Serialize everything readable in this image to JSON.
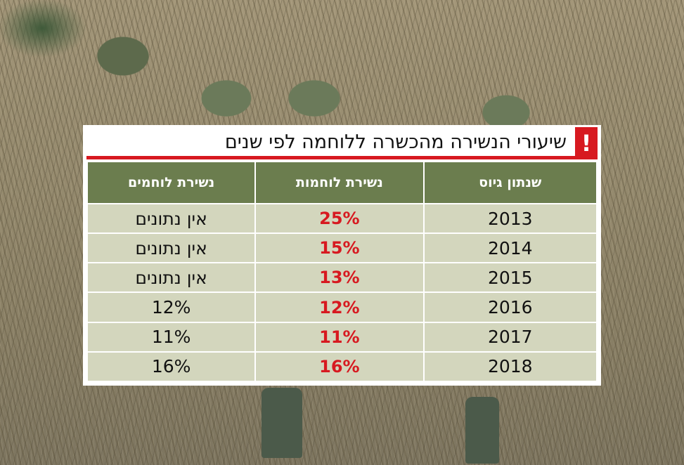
{
  "chart_data": {
    "type": "table",
    "title": "שיעורי הנשירה מהכשרה ללוחמה לפי שנים",
    "columns": [
      "שנתון גיוס",
      "נשירת לוחמות",
      "נשירת לוחמים"
    ],
    "rows": [
      [
        "2013",
        "25%",
        "אין נתונים"
      ],
      [
        "2014",
        "15%",
        "אין נתונים"
      ],
      [
        "2015",
        "13%",
        "אין נתונים"
      ],
      [
        "2016",
        "12%",
        "12%"
      ],
      [
        "2017",
        "11%",
        "11%"
      ],
      [
        "2018",
        "16%",
        "16%"
      ]
    ],
    "colors": {
      "accent": "#d71920",
      "header": "#6b7d4e",
      "cell": "#d3d6bd"
    }
  },
  "alert_symbol": "!",
  "icons": {
    "alert": "exclamation-icon"
  }
}
